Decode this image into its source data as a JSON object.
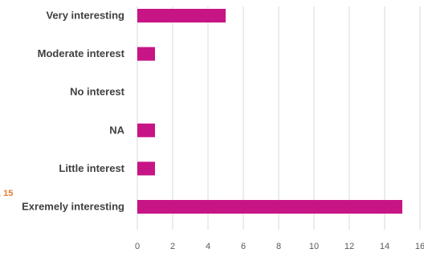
{
  "chart_data": {
    "type": "bar",
    "orientation": "horizontal",
    "categories": [
      "Very interesting",
      "Moderate interest",
      "No interest",
      "NA",
      "Little interest",
      "Exremely interesting"
    ],
    "values": [
      5,
      1,
      0,
      1,
      1,
      15
    ],
    "xlim": [
      0,
      16
    ],
    "xticks": [
      0,
      2,
      4,
      6,
      8,
      10,
      12,
      14,
      16
    ],
    "xtick_labels": [
      "0",
      "2",
      "4",
      "6",
      "8",
      "10",
      "12",
      "14",
      "16"
    ],
    "grid": "vertical",
    "bar_color": "#c71585",
    "annotation": {
      "text": ", 15",
      "color": "#e97c30"
    }
  }
}
